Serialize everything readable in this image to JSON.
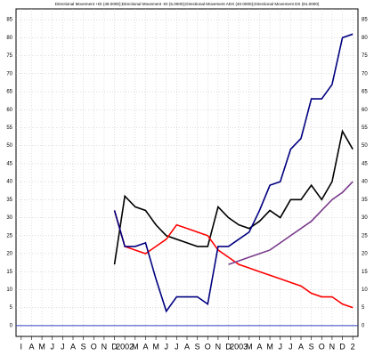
{
  "chart_data": {
    "type": "line",
    "title": "Directional Movement +DI (49.0000);Directional Movement -DI (5.0000);Directional Movement ADX (40.0000);Directional Movement DX (81.0000)",
    "categories": [
      "I",
      "A",
      "M",
      "J",
      "J",
      "A",
      "S",
      "O",
      "N",
      "D",
      "2002",
      "M",
      "A",
      "M",
      "J",
      "J",
      "A",
      "S",
      "O",
      "N",
      "D",
      "2003",
      "M",
      "A",
      "M",
      "J",
      "J",
      "A",
      "S",
      "O",
      "N",
      "D",
      "2"
    ],
    "series": [
      {
        "name": "+DI",
        "color": "#000000",
        "values": [
          null,
          null,
          null,
          null,
          null,
          null,
          null,
          null,
          null,
          17,
          36,
          33,
          32,
          28,
          25,
          24,
          23,
          22,
          22,
          33,
          30,
          28,
          27,
          29,
          32,
          30,
          35,
          35,
          39,
          35,
          40,
          54,
          49
        ]
      },
      {
        "name": "-DI",
        "color": "#ff0000",
        "values": [
          null,
          null,
          null,
          null,
          null,
          null,
          null,
          null,
          null,
          32,
          22,
          21,
          20,
          22,
          24,
          28,
          27,
          26,
          25,
          21,
          19,
          17,
          16,
          15,
          14,
          13,
          12,
          11,
          9,
          8,
          8,
          6,
          5
        ]
      },
      {
        "name": "ADX",
        "color": "#7a3c8c",
        "values": [
          null,
          null,
          null,
          null,
          null,
          null,
          null,
          null,
          null,
          null,
          null,
          null,
          null,
          null,
          null,
          null,
          null,
          null,
          null,
          null,
          17,
          18,
          19,
          20,
          21,
          23,
          25,
          27,
          29,
          32,
          35,
          37,
          40
        ]
      },
      {
        "name": "DX",
        "color": "#000080",
        "values": [
          null,
          null,
          null,
          null,
          null,
          null,
          null,
          null,
          null,
          32,
          22,
          22,
          23,
          13,
          4,
          8,
          8,
          8,
          6,
          22,
          22,
          24,
          26,
          32,
          39,
          40,
          49,
          52,
          63,
          63,
          67,
          80,
          81
        ]
      }
    ],
    "ylim": [
      -3,
      88
    ],
    "yticks": [
      0,
      5,
      10,
      15,
      20,
      25,
      30,
      35,
      40,
      45,
      50,
      55,
      60,
      65,
      70,
      75,
      80,
      85
    ],
    "grid": true
  }
}
